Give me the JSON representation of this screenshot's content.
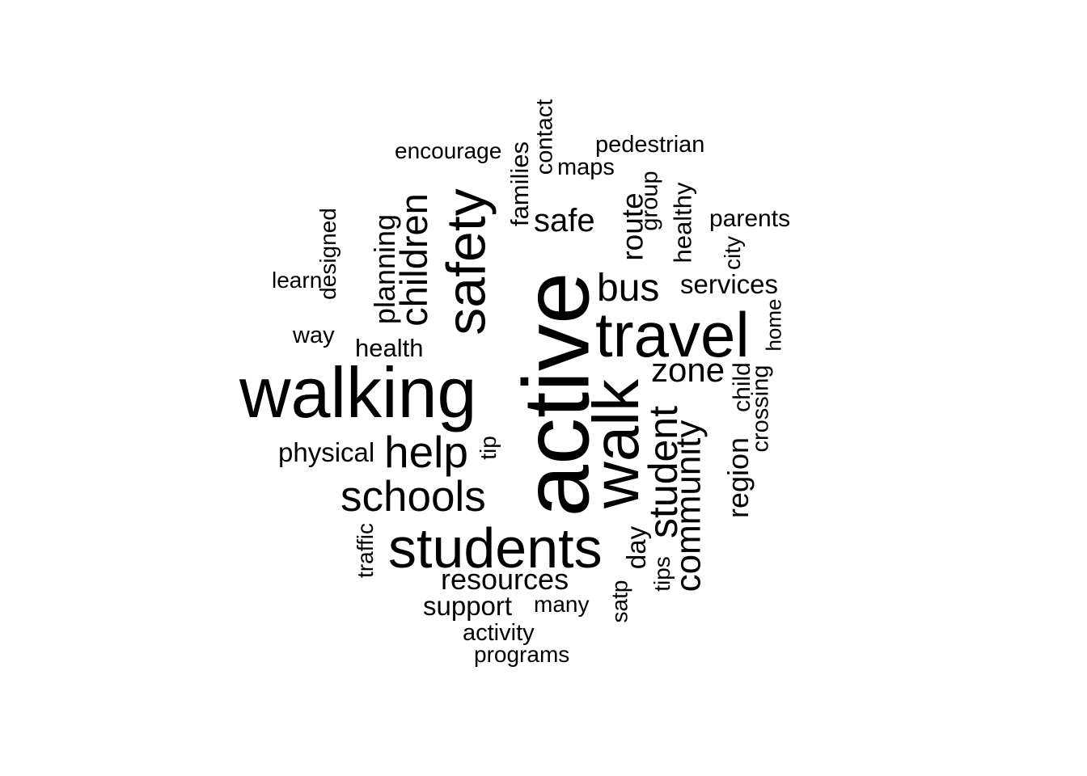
{
  "word_cloud": {
    "text_color": "#000000",
    "background": "#ffffff",
    "words": {
      "active": "active",
      "walking": "walking",
      "walk": "walk",
      "travel": "travel",
      "students": "students",
      "safety": "safety",
      "schools": "schools",
      "help": "help",
      "children": "children",
      "student": "student",
      "community": "community",
      "bus": "bus",
      "zone": "zone",
      "safe": "safe",
      "route": "route",
      "planning": "planning",
      "resources": "resources",
      "region": "region",
      "services": "services",
      "support": "support",
      "physical": "physical",
      "health": "health",
      "encourage": "encourage",
      "pedestrian": "pedestrian",
      "parents": "parents",
      "maps": "maps",
      "families": "families",
      "contact": "contact",
      "group": "group",
      "healthy": "healthy",
      "designed": "designed",
      "learn": "learn",
      "way": "way",
      "city": "city",
      "home": "home",
      "child": "child",
      "crossing": "crossing",
      "tip": "tip",
      "traffic": "traffic",
      "day": "day",
      "tips": "tips",
      "satp": "satp",
      "many": "many",
      "activity": "activity",
      "programs": "programs"
    }
  }
}
